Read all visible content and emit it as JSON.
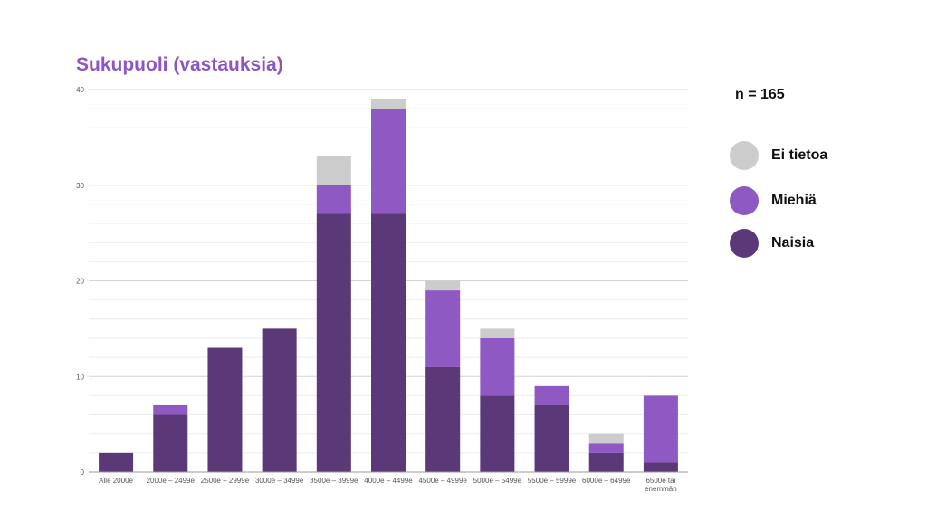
{
  "chart_data": {
    "type": "bar",
    "stacked": true,
    "title": "Sukupuoli (vastauksia)",
    "categories": [
      "Alle 2000e",
      "2000e – 2499e",
      "2500e – 2999e",
      "3000e – 3499e",
      "3500e – 3999e",
      "4000e – 4499e",
      "4500e – 4999e",
      "5000e – 5499e",
      "5500e – 5999e",
      "6000e – 6499e",
      "6500e tai enemmän"
    ],
    "series": [
      {
        "name": "Naisia",
        "color": "#5b3878",
        "values": [
          2,
          6,
          13,
          15,
          27,
          27,
          11,
          8,
          7,
          2,
          1
        ]
      },
      {
        "name": "Miehiä",
        "color": "#8e59c2",
        "values": [
          0,
          1,
          0,
          0,
          3,
          11,
          8,
          6,
          2,
          1,
          7
        ]
      },
      {
        "name": "Ei tietoa",
        "color": "#cccccc",
        "values": [
          0,
          0,
          0,
          0,
          3,
          1,
          1,
          1,
          0,
          1,
          0
        ]
      }
    ],
    "ylim": [
      0,
      40
    ],
    "yticks": [
      "0",
      "10",
      "20",
      "30",
      "40"
    ],
    "grid": true,
    "legend_placement": "right"
  },
  "annotation": "n = 165",
  "legend": [
    {
      "label": "Ei tietoa",
      "color": "#cccccc"
    },
    {
      "label": "Miehiä",
      "color": "#8e59c2"
    },
    {
      "label": "Naisia",
      "color": "#5b3878"
    }
  ]
}
